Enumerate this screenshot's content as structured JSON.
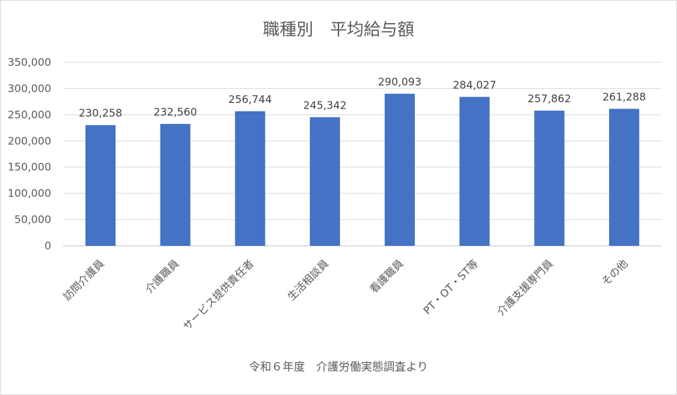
{
  "chart_data": {
    "type": "bar",
    "title": "職種別　平均給与額",
    "source_note": "令和６年度　介護労働実態調査より",
    "categories": [
      "訪問介護員",
      "介護職員",
      "サービス提供責任者",
      "生活相談員",
      "看護職員",
      "PT・OT・ST等",
      "介護支援専門員",
      "その他"
    ],
    "values": [
      230258,
      232560,
      256744,
      245342,
      290093,
      284027,
      257862,
      261288
    ],
    "data_labels": [
      "230,258",
      "232,560",
      "256,744",
      "245,342",
      "290,093",
      "284,027",
      "257,862",
      "261,288"
    ],
    "ylim": [
      0,
      350000
    ],
    "yticks": [
      "0",
      "50,000",
      "100,000",
      "150,000",
      "200,000",
      "250,000",
      "300,000",
      "350,000"
    ],
    "grid": true,
    "legend": "none",
    "bar_color": "#4472c4"
  }
}
